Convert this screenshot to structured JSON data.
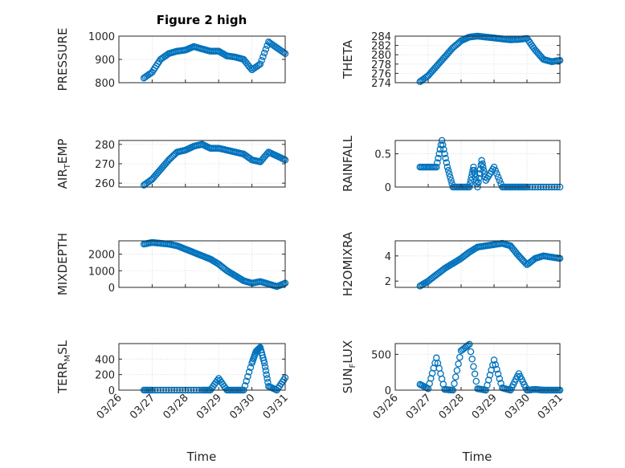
{
  "figure": {
    "title": "Figure 2 high",
    "xlabel": "Time",
    "x_tick_labels": [
      "03/26",
      "03/27",
      "03/28",
      "03/29",
      "03/30",
      "03/31"
    ],
    "marker_color": "#0072bd",
    "marker": "open-circle"
  },
  "chart_data": [
    {
      "type": "scatter",
      "ylabel": "PRESSURE",
      "ylim": [
        800,
        1000
      ],
      "yticks": [
        800,
        900,
        1000
      ],
      "grid": true,
      "x": [
        "03/26 18:00",
        "03/27 00:00",
        "03/27 06:00",
        "03/27 12:00",
        "03/27 18:00",
        "03/28 00:00",
        "03/28 06:00",
        "03/28 12:00",
        "03/28 18:00",
        "03/29 00:00",
        "03/29 06:00",
        "03/29 12:00",
        "03/29 18:00",
        "03/30 00:00",
        "03/30 06:00",
        "03/30 12:00",
        "03/30 18:00",
        "03/31 00:00"
      ],
      "values": [
        820,
        845,
        900,
        925,
        935,
        940,
        955,
        945,
        935,
        935,
        915,
        910,
        900,
        855,
        880,
        975,
        950,
        925
      ]
    },
    {
      "type": "scatter",
      "ylabel": "THETA",
      "ylim": [
        274,
        284
      ],
      "yticks": [
        274,
        276,
        278,
        280,
        282,
        284
      ],
      "grid": true,
      "x": [
        "03/26 18:00",
        "03/27 00:00",
        "03/27 06:00",
        "03/27 12:00",
        "03/27 18:00",
        "03/28 00:00",
        "03/28 06:00",
        "03/28 12:00",
        "03/28 18:00",
        "03/29 00:00",
        "03/29 06:00",
        "03/29 12:00",
        "03/29 18:00",
        "03/30 00:00",
        "03/30 06:00",
        "03/30 12:00",
        "03/30 18:00",
        "03/31 00:00"
      ],
      "values": [
        274.2,
        275.5,
        277.5,
        279.5,
        281.5,
        283,
        283.8,
        284,
        283.8,
        283.6,
        283.4,
        283.2,
        283.3,
        283.5,
        281,
        279,
        278.5,
        278.8
      ]
    },
    {
      "type": "scatter",
      "ylabel": "AIR_TEMP",
      "ylim": [
        258,
        282
      ],
      "yticks": [
        260,
        270,
        280
      ],
      "grid": true,
      "x": [
        "03/26 18:00",
        "03/27 00:00",
        "03/27 06:00",
        "03/27 12:00",
        "03/27 18:00",
        "03/28 00:00",
        "03/28 06:00",
        "03/28 12:00",
        "03/28 18:00",
        "03/29 00:00",
        "03/29 06:00",
        "03/29 12:00",
        "03/29 18:00",
        "03/30 00:00",
        "03/30 06:00",
        "03/30 12:00",
        "03/30 18:00",
        "03/31 00:00"
      ],
      "values": [
        259,
        262,
        267,
        272,
        276,
        277,
        279,
        280,
        278,
        278,
        277,
        276,
        275,
        272,
        271,
        276,
        274,
        272
      ]
    },
    {
      "type": "scatter",
      "ylabel": "RAINFALL",
      "ylim": [
        0,
        0.7
      ],
      "yticks": [
        0,
        0.5
      ],
      "grid": true,
      "x": [
        "03/26 18:00",
        "03/27 00:00",
        "03/27 06:00",
        "03/27 10:00",
        "03/27 14:00",
        "03/27 18:00",
        "03/28 00:00",
        "03/28 06:00",
        "03/28 09:00",
        "03/28 12:00",
        "03/28 15:00",
        "03/28 18:00",
        "03/29 00:00",
        "03/29 06:00",
        "03/29 12:00",
        "03/29 18:00",
        "03/30 00:00",
        "03/30 12:00",
        "03/31 00:00"
      ],
      "values": [
        0.3,
        0.3,
        0.3,
        0.7,
        0.3,
        0,
        0,
        0,
        0.3,
        0,
        0.4,
        0.1,
        0.3,
        0,
        0,
        0,
        0,
        0,
        0
      ]
    },
    {
      "type": "scatter",
      "ylabel": "MIXDEPTH",
      "ylim": [
        0,
        2800
      ],
      "yticks": [
        0,
        1000,
        2000
      ],
      "grid": true,
      "x": [
        "03/26 18:00",
        "03/27 00:00",
        "03/27 06:00",
        "03/27 12:00",
        "03/27 18:00",
        "03/28 00:00",
        "03/28 06:00",
        "03/28 12:00",
        "03/28 18:00",
        "03/29 00:00",
        "03/29 06:00",
        "03/29 12:00",
        "03/29 18:00",
        "03/30 00:00",
        "03/30 06:00",
        "03/30 12:00",
        "03/30 18:00",
        "03/31 00:00"
      ],
      "values": [
        2600,
        2700,
        2650,
        2600,
        2500,
        2300,
        2100,
        1900,
        1700,
        1400,
        1000,
        700,
        400,
        250,
        350,
        200,
        50,
        250
      ]
    },
    {
      "type": "scatter",
      "ylabel": "H2OMIXRA",
      "ylim": [
        1.5,
        5.2
      ],
      "yticks": [
        2,
        4
      ],
      "grid": true,
      "x": [
        "03/26 18:00",
        "03/27 00:00",
        "03/27 06:00",
        "03/27 12:00",
        "03/27 18:00",
        "03/28 00:00",
        "03/28 06:00",
        "03/28 12:00",
        "03/28 18:00",
        "03/29 00:00",
        "03/29 06:00",
        "03/29 12:00",
        "03/29 18:00",
        "03/30 00:00",
        "03/30 06:00",
        "03/30 12:00",
        "03/30 18:00",
        "03/31 00:00"
      ],
      "values": [
        1.6,
        2,
        2.5,
        3,
        3.4,
        3.8,
        4.3,
        4.7,
        4.8,
        4.9,
        5,
        4.8,
        4,
        3.3,
        3.8,
        4,
        3.9,
        3.8
      ]
    },
    {
      "type": "scatter",
      "ylabel": "TERR_MSL",
      "ylim": [
        0,
        600
      ],
      "yticks": [
        0,
        200,
        400
      ],
      "grid": true,
      "x": [
        "03/26 18:00",
        "03/27 00:00",
        "03/27 12:00",
        "03/28 00:00",
        "03/28 12:00",
        "03/28 18:00",
        "03/29 00:00",
        "03/29 06:00",
        "03/29 12:00",
        "03/29 18:00",
        "03/30 00:00",
        "03/30 03:00",
        "03/30 06:00",
        "03/30 09:00",
        "03/30 12:00",
        "03/30 18:00",
        "03/31 00:00"
      ],
      "values": [
        0,
        0,
        0,
        0,
        0,
        0,
        150,
        0,
        0,
        0,
        350,
        500,
        550,
        350,
        50,
        0,
        160
      ]
    },
    {
      "type": "scatter",
      "ylabel": "SUN_FLUX",
      "ylim": [
        0,
        650
      ],
      "yticks": [
        0,
        500
      ],
      "grid": true,
      "x": [
        "03/26 18:00",
        "03/27 00:00",
        "03/27 06:00",
        "03/27 12:00",
        "03/27 18:00",
        "03/28 00:00",
        "03/28 06:00",
        "03/28 12:00",
        "03/28 18:00",
        "03/29 00:00",
        "03/29 06:00",
        "03/29 12:00",
        "03/29 18:00",
        "03/30 00:00",
        "03/30 06:00",
        "03/30 12:00",
        "03/30 18:00",
        "03/31 00:00"
      ],
      "values": [
        80,
        20,
        450,
        10,
        0,
        550,
        640,
        20,
        0,
        420,
        30,
        0,
        230,
        0,
        10,
        0,
        0,
        0
      ]
    }
  ]
}
